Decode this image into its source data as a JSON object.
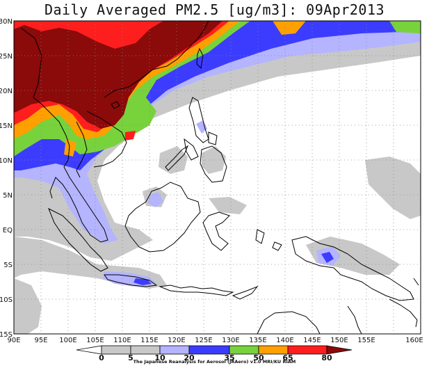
{
  "title": "Daily Averaged PM2.5 [ug/m3]: 09Apr2013",
  "lat_labels": [
    "30N",
    "25N",
    "20N",
    "15N",
    "10N",
    "5N",
    "EQ",
    "5S",
    "10S",
    "15S"
  ],
  "lon_labels": [
    "90E",
    "95E",
    "100E",
    "105E",
    "110E",
    "115E",
    "120E",
    "125E",
    "130E",
    "135E",
    "140E",
    "145E",
    "150E",
    "155E",
    "160E"
  ],
  "colorbar": {
    "ticks": [
      "0",
      "5",
      "10",
      "20",
      "35",
      "50",
      "65",
      "80"
    ],
    "colors": [
      "#ffffff",
      "#c8c8c8",
      "#b4b4ff",
      "#3c3cff",
      "#78d23c",
      "#ffa000",
      "#ff1e1e",
      "#8b0a0a"
    ]
  },
  "credit": "The Japanese Reanalysis for Aerosol (JRAero) v1.0 MRI/KU RIAM"
}
